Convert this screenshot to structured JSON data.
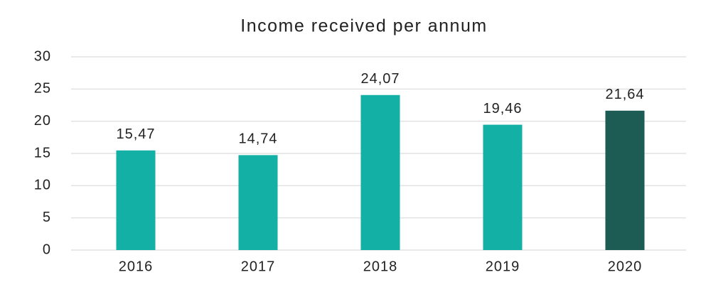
{
  "chart_data": {
    "type": "bar",
    "title": "Income received per annum",
    "categories": [
      "2016",
      "2017",
      "2018",
      "2019",
      "2020"
    ],
    "values": [
      15.47,
      14.74,
      24.07,
      19.46,
      21.64
    ],
    "value_labels": [
      "15,47",
      "14,74",
      "24,07",
      "19,46",
      "21,64"
    ],
    "colors": [
      "#13b0a5",
      "#13b0a5",
      "#13b0a5",
      "#13b0a5",
      "#1c5c55"
    ],
    "ylim": [
      0,
      30
    ],
    "yticks": [
      0,
      5,
      10,
      15,
      20,
      25,
      30
    ],
    "grid": true
  }
}
